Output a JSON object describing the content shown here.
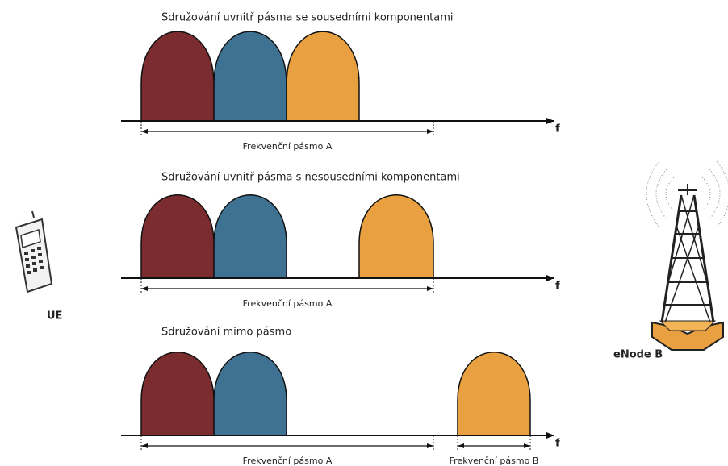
{
  "sections": [
    {
      "title": "Sdružování uvnitř pásma se sousedními komponentami",
      "axis_label": "f",
      "bands": [
        {
          "label": "Frekvenční pásmo A"
        }
      ]
    },
    {
      "title": "Sdružování uvnitř pásma s nesousedními komponentami",
      "axis_label": "f",
      "bands": [
        {
          "label": "Frekvenční pásmo A"
        }
      ]
    },
    {
      "title": "Sdružování mimo pásmo",
      "axis_label": "f",
      "bands": [
        {
          "label": "Frekvenční pásmo A"
        },
        {
          "label": "Frekvenční pásmo B"
        }
      ]
    }
  ],
  "ue": {
    "label": "UE"
  },
  "enodeb": {
    "label": "eNode B"
  }
}
